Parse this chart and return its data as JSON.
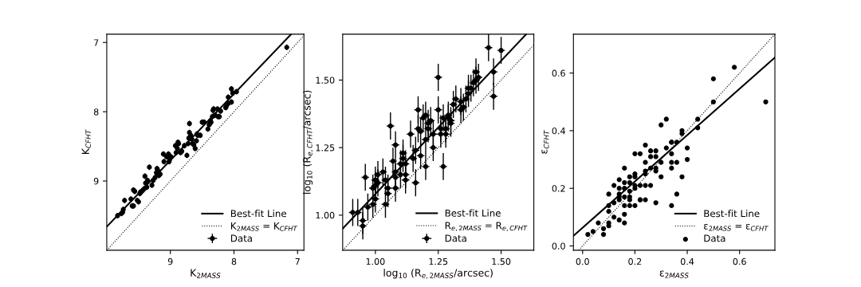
{
  "chart_data": [
    {
      "type": "scatter",
      "xlabel": "K$_{2MASS}$",
      "ylabel": "K$_{CFHT}$",
      "xlim": [
        10.0,
        6.9
      ],
      "ylim": [
        10.0,
        6.88
      ],
      "xticks": [
        9,
        8,
        7
      ],
      "yticks": [
        7,
        8,
        9
      ],
      "legend": "bottom right",
      "series": [
        {
          "name": "Best-fit Line",
          "type": "line",
          "color": "#000000",
          "line_style": "solid",
          "x": [
            10.0,
            7.1
          ],
          "values": [
            9.66,
            6.88
          ]
        },
        {
          "name": "K$_{2MASS}$ = K$_{CFHT}$",
          "type": "line",
          "color": "#000000",
          "line_style": "dotted",
          "x": [
            10.0,
            6.9
          ],
          "values": [
            10.0,
            6.9
          ]
        },
        {
          "name": "Data",
          "color": "#000000",
          "marker": "circle",
          "x": [
            9.83,
            9.77,
            9.75,
            9.74,
            9.72,
            9.62,
            9.6,
            9.58,
            9.58,
            9.56,
            9.52,
            9.5,
            9.48,
            9.47,
            9.45,
            9.43,
            9.41,
            9.39,
            9.4,
            9.37,
            9.36,
            9.33,
            9.29,
            9.27,
            9.24,
            9.22,
            9.21,
            9.2,
            9.18,
            9.16,
            9.11,
            9.1,
            9.06,
            9.03,
            9.02,
            9.01,
            8.99,
            8.92,
            8.91,
            8.89,
            8.88,
            8.87,
            8.84,
            8.82,
            8.78,
            8.74,
            8.72,
            8.71,
            8.7,
            8.7,
            8.68,
            8.66,
            8.65,
            8.63,
            8.61,
            8.59,
            8.58,
            8.57,
            8.53,
            8.5,
            8.47,
            8.41,
            8.39,
            8.38,
            8.37,
            8.36,
            8.34,
            8.33,
            8.32,
            8.3,
            8.26,
            8.25,
            8.23,
            8.21,
            8.13,
            8.12,
            8.09,
            8.09,
            8.04,
            8.04,
            8.02,
            7.96,
            7.17
          ],
          "values": [
            9.5,
            9.47,
            9.45,
            9.41,
            9.28,
            9.26,
            9.36,
            9.36,
            9.13,
            9.15,
            9.28,
            9.3,
            9.18,
            9.16,
            9.15,
            9.13,
            9.11,
            9.03,
            8.93,
            9.09,
            8.99,
            8.8,
            9.06,
            8.99,
            8.95,
            8.88,
            8.82,
            8.84,
            8.92,
            8.9,
            8.61,
            8.72,
            8.65,
            8.61,
            8.72,
            8.69,
            8.65,
            8.49,
            8.59,
            8.53,
            8.44,
            8.46,
            8.59,
            8.57,
            8.49,
            8.63,
            8.46,
            8.38,
            8.3,
            8.17,
            8.34,
            8.4,
            8.46,
            8.48,
            8.53,
            8.42,
            8.32,
            8.34,
            8.34,
            8.15,
            8.15,
            8.25,
            8.19,
            8.17,
            8.13,
            8.15,
            8.07,
            7.98,
            7.96,
            8.05,
            7.96,
            8.07,
            8.07,
            7.99,
            7.94,
            7.92,
            7.88,
            7.79,
            7.67,
            7.86,
            7.73,
            7.71,
            7.07
          ],
          "errors": [
            0.04,
            0.04,
            0.04,
            0.04,
            0.04,
            0.04,
            0.04,
            0.04,
            0.04,
            0.04,
            0.04,
            0.04,
            0.04,
            0.04,
            0.04,
            0.04,
            0.04,
            0.04,
            0.04,
            0.04,
            0.04,
            0.04,
            0.04,
            0.04,
            0.04,
            0.04,
            0.04,
            0.04,
            0.04,
            0.04,
            0.04,
            0.04,
            0.04,
            0.04,
            0.04,
            0.04,
            0.04,
            0.04,
            0.04,
            0.04,
            0.04,
            0.04,
            0.04,
            0.04,
            0.04,
            0.04,
            0.04,
            0.04,
            0.04,
            0.04,
            0.04,
            0.04,
            0.04,
            0.04,
            0.04,
            0.04,
            0.04,
            0.04,
            0.04,
            0.04,
            0.04,
            0.04,
            0.04,
            0.04,
            0.04,
            0.04,
            0.04,
            0.04,
            0.04,
            0.04,
            0.04,
            0.04,
            0.04,
            0.04,
            0.04,
            0.04,
            0.04,
            0.04,
            0.04,
            0.04,
            0.04,
            0.04,
            0.04
          ],
          "xerrors": [
            0.03,
            0.03,
            0.03,
            0.03,
            0.03,
            0.03,
            0.03,
            0.03,
            0.03,
            0.03,
            0.03,
            0.03,
            0.03,
            0.03,
            0.03,
            0.03,
            0.03,
            0.03,
            0.03,
            0.03,
            0.03,
            0.03,
            0.03,
            0.03,
            0.03,
            0.03,
            0.03,
            0.03,
            0.03,
            0.03,
            0.03,
            0.03,
            0.03,
            0.03,
            0.03,
            0.03,
            0.03,
            0.03,
            0.03,
            0.03,
            0.03,
            0.03,
            0.03,
            0.03,
            0.03,
            0.03,
            0.03,
            0.03,
            0.03,
            0.03,
            0.03,
            0.03,
            0.03,
            0.03,
            0.03,
            0.03,
            0.03,
            0.03,
            0.03,
            0.03,
            0.03,
            0.03,
            0.03,
            0.03,
            0.03,
            0.03,
            0.03,
            0.03,
            0.03,
            0.03,
            0.03,
            0.03,
            0.03,
            0.03,
            0.03,
            0.03,
            0.03,
            0.03,
            0.03,
            0.03,
            0.03,
            0.03,
            0.03
          ]
        }
      ]
    },
    {
      "type": "scatter",
      "xlabel": "log$_{10}$ (R$_{e,2MASS}$/arcsec)",
      "ylabel": "log$_{10}$ (R$_{e,CFHT}$/arcsec)",
      "xlim": [
        0.87,
        1.63
      ],
      "ylim": [
        0.87,
        1.67
      ],
      "xticks": [
        {
          "value": 1.0,
          "label": "1.00"
        },
        1.25,
        {
          "value": 1.5,
          "label": "1.50"
        }
      ],
      "yticks": [
        {
          "value": 1.0,
          "label": "1.00"
        },
        1.25,
        {
          "value": 1.5,
          "label": "1.50"
        }
      ],
      "legend": "bottom right",
      "series": [
        {
          "name": "Best-fit Line",
          "type": "line",
          "color": "#000000",
          "line_style": "solid",
          "x": [
            0.87,
            1.6
          ],
          "values": [
            0.95,
            1.67
          ]
        },
        {
          "name": "R$_{e,2MASS}$ = R$_{e,CFHT}$",
          "type": "line",
          "color": "#000000",
          "line_style": "dotted",
          "x": [
            0.87,
            1.63
          ],
          "values": [
            0.87,
            1.63
          ]
        },
        {
          "name": "Data",
          "color": "#000000",
          "marker": "circle",
          "x": [
            0.91,
            0.93,
            0.95,
            0.95,
            0.96,
            0.97,
            0.99,
            0.99,
            1.0,
            1.0,
            1.0,
            1.01,
            1.01,
            1.03,
            1.04,
            1.04,
            1.05,
            1.06,
            1.05,
            1.07,
            1.08,
            1.08,
            1.08,
            1.08,
            1.1,
            1.1,
            1.11,
            1.11,
            1.12,
            1.12,
            1.12,
            1.14,
            1.15,
            1.16,
            1.16,
            1.17,
            1.17,
            1.18,
            1.18,
            1.19,
            1.2,
            1.2,
            1.2,
            1.21,
            1.21,
            1.22,
            1.23,
            1.23,
            1.25,
            1.25,
            1.26,
            1.27,
            1.27,
            1.28,
            1.28,
            1.29,
            1.3,
            1.31,
            1.32,
            1.34,
            1.35,
            1.34,
            1.36,
            1.37,
            1.37,
            1.38,
            1.39,
            1.4,
            1.4,
            1.41,
            1.45,
            1.5,
            1.47,
            1.47,
            1.29,
            1.3,
            1.26
          ],
          "values": [
            1.01,
            1.01,
            0.96,
            0.98,
            1.14,
            1.03,
            1.04,
            1.1,
            1.13,
            1.11,
            1.06,
            1.12,
            1.15,
            1.16,
            1.13,
            1.04,
            1.08,
            1.33,
            1.1,
            1.2,
            1.16,
            1.14,
            1.1,
            1.26,
            1.19,
            1.15,
            1.23,
            1.21,
            1.15,
            1.13,
            1.19,
            1.3,
            1.21,
            1.12,
            1.24,
            1.32,
            1.39,
            1.22,
            1.31,
            1.36,
            1.18,
            1.28,
            1.37,
            1.34,
            1.32,
            1.35,
            1.25,
            1.3,
            1.51,
            1.39,
            1.3,
            1.36,
            1.18,
            1.32,
            1.3,
            1.36,
            1.35,
            1.41,
            1.43,
            1.42,
            1.4,
            1.39,
            1.43,
            1.45,
            1.47,
            1.47,
            1.49,
            1.53,
            1.5,
            1.51,
            1.62,
            1.61,
            1.53,
            1.44,
            1.37,
            1.34,
            1.32
          ],
          "errors": [
            0.05,
            0.05,
            0.05,
            0.05,
            0.05,
            0.05,
            0.05,
            0.05,
            0.05,
            0.05,
            0.05,
            0.05,
            0.05,
            0.05,
            0.05,
            0.05,
            0.05,
            0.05,
            0.05,
            0.05,
            0.05,
            0.05,
            0.05,
            0.05,
            0.05,
            0.05,
            0.05,
            0.05,
            0.05,
            0.05,
            0.05,
            0.05,
            0.05,
            0.05,
            0.05,
            0.05,
            0.05,
            0.05,
            0.05,
            0.05,
            0.05,
            0.05,
            0.05,
            0.05,
            0.05,
            0.05,
            0.05,
            0.05,
            0.05,
            0.05,
            0.05,
            0.05,
            0.05,
            0.05,
            0.05,
            0.05,
            0.05,
            0.05,
            0.05,
            0.05,
            0.05,
            0.05,
            0.05,
            0.05,
            0.05,
            0.05,
            0.05,
            0.05,
            0.05,
            0.05,
            0.05,
            0.05,
            0.05,
            0.05,
            0.05,
            0.05,
            0.05
          ],
          "xerrors": [
            0.015,
            0.015,
            0.015,
            0.015,
            0.015,
            0.015,
            0.015,
            0.015,
            0.015,
            0.015,
            0.015,
            0.015,
            0.015,
            0.015,
            0.015,
            0.015,
            0.015,
            0.015,
            0.015,
            0.015,
            0.015,
            0.015,
            0.015,
            0.015,
            0.015,
            0.015,
            0.015,
            0.015,
            0.015,
            0.015,
            0.015,
            0.015,
            0.015,
            0.015,
            0.015,
            0.015,
            0.015,
            0.015,
            0.015,
            0.015,
            0.015,
            0.015,
            0.015,
            0.015,
            0.015,
            0.015,
            0.015,
            0.015,
            0.015,
            0.015,
            0.015,
            0.015,
            0.015,
            0.015,
            0.015,
            0.015,
            0.015,
            0.015,
            0.015,
            0.015,
            0.015,
            0.015,
            0.015,
            0.015,
            0.015,
            0.015,
            0.015,
            0.015,
            0.015,
            0.015,
            0.015,
            0.015,
            0.015,
            0.015,
            0.015,
            0.015,
            0.015
          ]
        }
      ]
    },
    {
      "type": "scatter",
      "xlabel": "ε$_{2MASS}$",
      "ylabel": "ε$_{CFHT}$",
      "xlim": [
        -0.035,
        0.735
      ],
      "ylim": [
        -0.015,
        0.735
      ],
      "xticks": [
        {
          "value": 0,
          "label": "0.0"
        },
        0.2,
        0.4,
        0.6
      ],
      "yticks": [
        {
          "value": 0,
          "label": "0.0"
        },
        0.2,
        0.4,
        0.6
      ],
      "legend": "bottom right",
      "series": [
        {
          "name": "Best-fit Line",
          "type": "line",
          "color": "#000000",
          "line_style": "solid",
          "x": [
            -0.035,
            0.735
          ],
          "values": [
            0.035,
            0.654
          ]
        },
        {
          "name": "ε$_{2MASS}$ = ε$_{CFHT}$",
          "type": "line",
          "color": "#000000",
          "line_style": "dotted",
          "x": [
            -0.015,
            0.735
          ],
          "values": [
            -0.015,
            0.735
          ]
        },
        {
          "name": "Data",
          "color": "#000000",
          "marker": "circle",
          "x": [
            0.02,
            0.04,
            0.06,
            0.08,
            0.08,
            0.1,
            0.1,
            0.1,
            0.1,
            0.1,
            0.12,
            0.12,
            0.12,
            0.14,
            0.14,
            0.14,
            0.14,
            0.14,
            0.14,
            0.16,
            0.16,
            0.16,
            0.16,
            0.16,
            0.16,
            0.16,
            0.18,
            0.18,
            0.18,
            0.18,
            0.18,
            0.18,
            0.2,
            0.2,
            0.2,
            0.2,
            0.2,
            0.2,
            0.22,
            0.22,
            0.22,
            0.22,
            0.24,
            0.24,
            0.24,
            0.24,
            0.24,
            0.24,
            0.26,
            0.26,
            0.26,
            0.26,
            0.28,
            0.28,
            0.28,
            0.28,
            0.28,
            0.3,
            0.3,
            0.3,
            0.32,
            0.32,
            0.34,
            0.34,
            0.34,
            0.34,
            0.34,
            0.34,
            0.36,
            0.36,
            0.36,
            0.38,
            0.38,
            0.38,
            0.4,
            0.4,
            0.44,
            0.44,
            0.5,
            0.5,
            0.58,
            0.7
          ],
          "values": [
            0.04,
            0.05,
            0.08,
            0.06,
            0.04,
            0.18,
            0.14,
            0.08,
            0.07,
            0.12,
            0.15,
            0.21,
            0.1,
            0.23,
            0.2,
            0.18,
            0.17,
            0.16,
            0.09,
            0.27,
            0.22,
            0.2,
            0.17,
            0.14,
            0.11,
            0.08,
            0.24,
            0.22,
            0.19,
            0.17,
            0.16,
            0.14,
            0.25,
            0.24,
            0.21,
            0.2,
            0.14,
            0.32,
            0.32,
            0.21,
            0.16,
            0.16,
            0.35,
            0.29,
            0.26,
            0.25,
            0.21,
            0.16,
            0.33,
            0.31,
            0.27,
            0.21,
            0.33,
            0.31,
            0.27,
            0.26,
            0.15,
            0.42,
            0.29,
            0.24,
            0.44,
            0.34,
            0.36,
            0.36,
            0.32,
            0.29,
            0.27,
            0.14,
            0.36,
            0.29,
            0.18,
            0.4,
            0.39,
            0.24,
            0.34,
            0.3,
            0.44,
            0.41,
            0.58,
            0.5,
            0.62,
            0.5
          ]
        }
      ]
    }
  ]
}
